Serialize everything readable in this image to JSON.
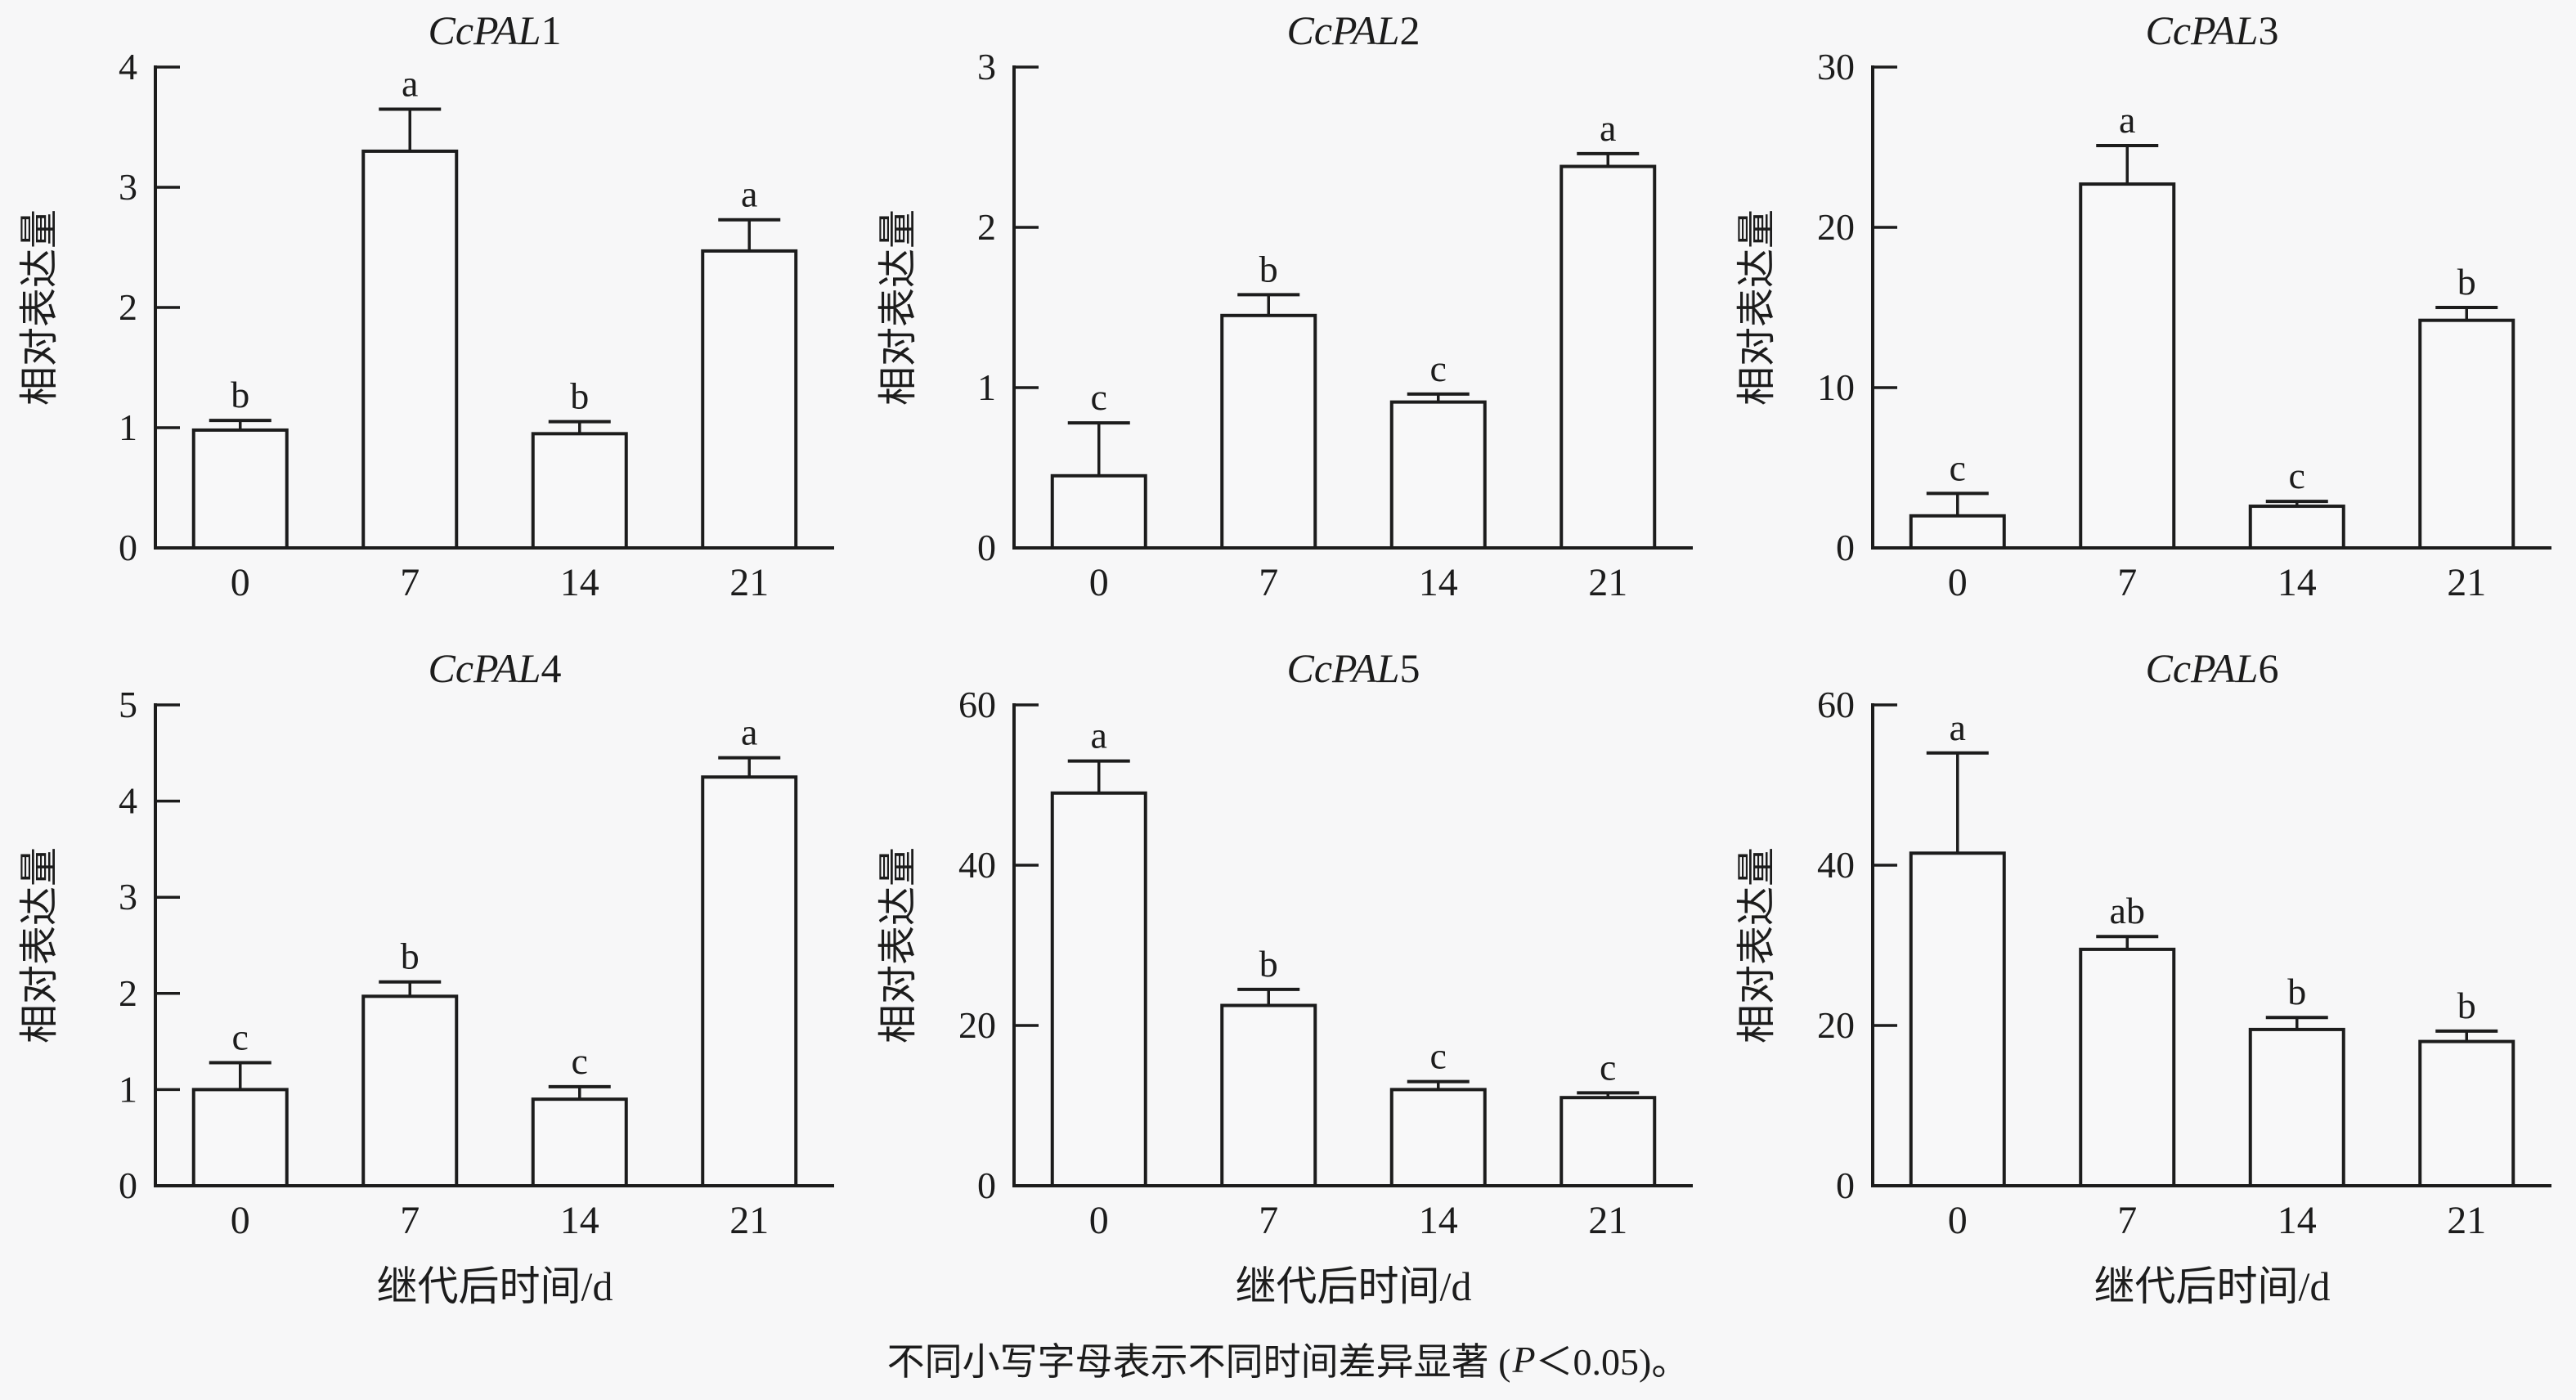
{
  "style": {
    "background": "#f7f7f8",
    "ink": "#1c1c1c",
    "bar_fill": "#f8f8f9"
  },
  "caption": {
    "before": "不同小写字母表示不同时间差异显著 (",
    "p_symbol": "P",
    "after": "＜0.05)。"
  },
  "shared": {
    "ylabel": "相对表达量",
    "xlabel": "继代后时间/d",
    "categories": [
      "0",
      "7",
      "14",
      "21"
    ]
  },
  "chart_data": [
    {
      "type": "bar",
      "title_gene": "CcPAL",
      "title_index": "1",
      "categories": [
        "0",
        "7",
        "14",
        "21"
      ],
      "values": [
        0.98,
        3.3,
        0.95,
        2.47
      ],
      "errors_plus": [
        0.08,
        0.35,
        0.1,
        0.26
      ],
      "sig_letters": [
        "b",
        "a",
        "b",
        "a"
      ],
      "ylim": [
        0,
        4
      ],
      "yticks": [
        0,
        1,
        2,
        3,
        4
      ],
      "ylabel": "相对表达量",
      "xlabel": "",
      "grid": false
    },
    {
      "type": "bar",
      "title_gene": "CcPAL",
      "title_index": "2",
      "categories": [
        "0",
        "7",
        "14",
        "21"
      ],
      "values": [
        0.45,
        1.45,
        0.91,
        2.38
      ],
      "errors_plus": [
        0.33,
        0.13,
        0.05,
        0.08
      ],
      "sig_letters": [
        "c",
        "b",
        "c",
        "a"
      ],
      "ylim": [
        0,
        3
      ],
      "yticks": [
        0,
        1,
        2,
        3
      ],
      "ylabel": "相对表达量",
      "xlabel": "",
      "grid": false
    },
    {
      "type": "bar",
      "title_gene": "CcPAL",
      "title_index": "3",
      "categories": [
        "0",
        "7",
        "14",
        "21"
      ],
      "values": [
        2.0,
        22.7,
        2.6,
        14.2
      ],
      "errors_plus": [
        1.4,
        2.4,
        0.3,
        0.8
      ],
      "sig_letters": [
        "c",
        "a",
        "c",
        "b"
      ],
      "ylim": [
        0,
        30
      ],
      "yticks": [
        0,
        10,
        20,
        30
      ],
      "ylabel": "相对表达量",
      "xlabel": "",
      "grid": false
    },
    {
      "type": "bar",
      "title_gene": "CcPAL",
      "title_index": "4",
      "categories": [
        "0",
        "7",
        "14",
        "21"
      ],
      "values": [
        1.0,
        1.97,
        0.9,
        4.25
      ],
      "errors_plus": [
        0.28,
        0.15,
        0.13,
        0.2
      ],
      "sig_letters": [
        "c",
        "b",
        "c",
        "a"
      ],
      "ylim": [
        0,
        5
      ],
      "yticks": [
        0,
        1,
        2,
        3,
        4,
        5
      ],
      "ylabel": "相对表达量",
      "xlabel": "继代后时间/d",
      "grid": false
    },
    {
      "type": "bar",
      "title_gene": "CcPAL",
      "title_index": "5",
      "categories": [
        "0",
        "7",
        "14",
        "21"
      ],
      "values": [
        49.0,
        22.5,
        12.0,
        11.0
      ],
      "errors_plus": [
        4.0,
        2.0,
        1.0,
        0.6
      ],
      "sig_letters": [
        "a",
        "b",
        "c",
        "c"
      ],
      "ylim": [
        0,
        60
      ],
      "yticks": [
        0,
        20,
        40,
        60
      ],
      "ylabel": "相对表达量",
      "xlabel": "继代后时间/d",
      "grid": false
    },
    {
      "type": "bar",
      "title_gene": "CcPAL",
      "title_index": "6",
      "categories": [
        "0",
        "7",
        "14",
        "21"
      ],
      "values": [
        41.5,
        29.5,
        19.5,
        18.0
      ],
      "errors_plus": [
        12.5,
        1.6,
        1.5,
        1.3
      ],
      "sig_letters": [
        "a",
        "ab",
        "b",
        "b"
      ],
      "ylim": [
        0,
        60
      ],
      "yticks": [
        0,
        20,
        40,
        60
      ],
      "ylabel": "相对表达量",
      "xlabel": "继代后时间/d",
      "grid": false
    }
  ]
}
